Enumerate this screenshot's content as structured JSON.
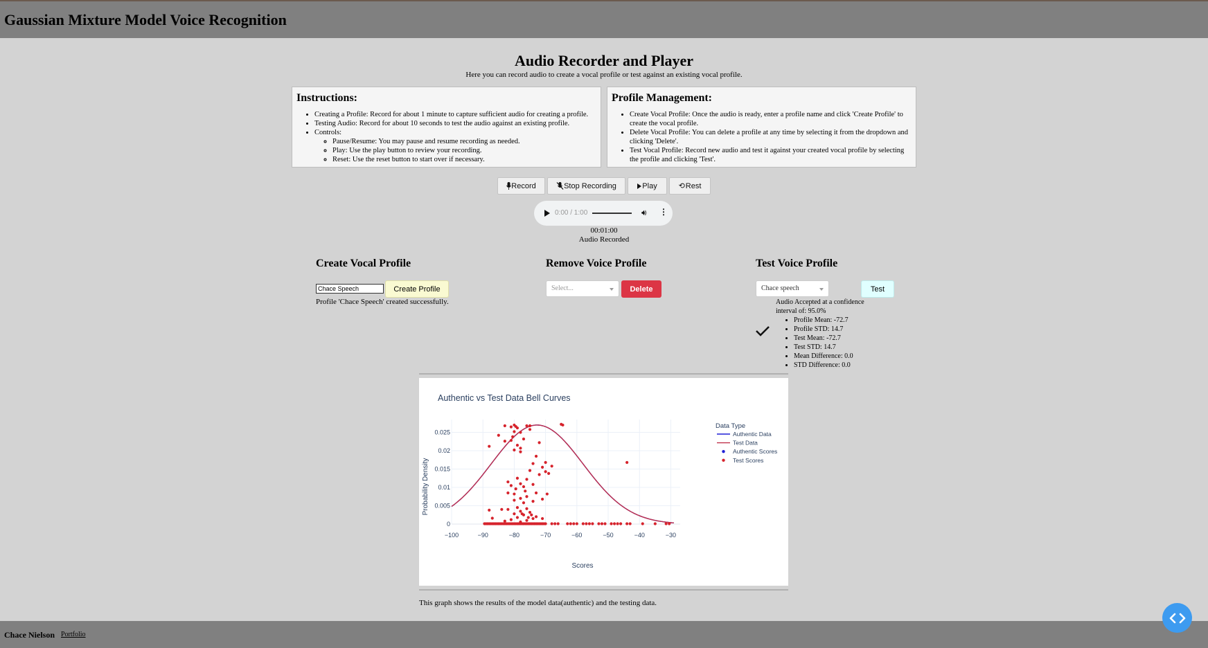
{
  "header": {
    "title": "Gaussian Mixture Model Voice Recognition"
  },
  "main": {
    "title": "Audio Recorder and Player",
    "subtitle": "Here you can record audio to create a vocal profile or test against an existing vocal profile."
  },
  "instructions": {
    "title": "Instructions:",
    "items": [
      "Creating a Profile: Record for about 1 minute to capture sufficient audio for creating a profile.",
      "Testing Audio: Record for about 10 seconds to test the audio against an existing profile.",
      "Controls:"
    ],
    "controls": [
      "Pause/Resume: You may pause and resume recording as needed.",
      "Play: Use the play button to review your recording.",
      "Reset: Use the reset button to start over if necessary."
    ]
  },
  "profile_management": {
    "title": "Profile Management:",
    "items": [
      "Create Vocal Profile: Once the audio is ready, enter a profile name and click 'Create Profile' to create the vocal profile.",
      "Delete Vocal Profile: You can delete a profile at any time by selecting it from the dropdown and clicking 'Delete'.",
      "Test Vocal Profile: Record new audio and test it against your created vocal profile by selecting the profile and clicking 'Test'."
    ]
  },
  "controls": {
    "record": "Record",
    "stop": "Stop Recording",
    "play": "Play",
    "reset": "Rest"
  },
  "player": {
    "time": "0:00 / 1:00"
  },
  "status": {
    "timer": "00:01:00",
    "message": "Audio Recorded"
  },
  "create": {
    "title": "Create Vocal Profile",
    "input_value": "Chace Speech",
    "button": "Create Profile",
    "message": "Profile 'Chace Speech' created successfully."
  },
  "remove": {
    "title": "Remove Voice Profile",
    "placeholder": "Select...",
    "button": "Delete"
  },
  "test": {
    "title": "Test Voice Profile",
    "selected": "Chace speech",
    "button": "Test",
    "result": "Audio Accepted at a confidence interval of: 95.0%",
    "stats": [
      "Profile Mean: -72.7",
      "Profile STD: 14.7",
      "Test Mean: -72.7",
      "Test STD: 14.7",
      "Mean Difference: 0.0",
      "STD Difference: 0.0"
    ]
  },
  "chart_data": {
    "type": "line",
    "title": "Authentic vs Test Data Bell Curves",
    "xlabel": "Scores",
    "ylabel": "Probability Density",
    "xlim": [
      -100,
      -27
    ],
    "ylim": [
      0,
      0.0285
    ],
    "xticks": [
      -100,
      -90,
      -80,
      -70,
      -60,
      -50,
      -40,
      -30
    ],
    "xtick_labels": [
      "−100",
      "−90",
      "−80",
      "−70",
      "−60",
      "−50",
      "−40",
      "−30"
    ],
    "yticks": [
      0,
      0.005,
      0.01,
      0.015,
      0.02,
      0.025
    ],
    "ytick_labels": [
      "0",
      "0.005",
      "0.01",
      "0.015",
      "0.02",
      "0.025"
    ],
    "grid": true,
    "legend_title": "Data Type",
    "legend_position": "right",
    "legend": [
      "Authentic Data",
      "Test Data",
      "Authentic Scores",
      "Test Scores"
    ],
    "curve": {
      "mean": -72.7,
      "std": 14.7,
      "x_start": -100,
      "x_end": -29,
      "amplitude": 0.027
    },
    "colors": {
      "authentic": "#1f1fd6",
      "test": "#d6232c",
      "test_line": "#c0304a"
    },
    "test_scores_upper": [
      [
        -81,
        0.0265
      ],
      [
        -80,
        0.027
      ],
      [
        -79.5,
        0.0266
      ],
      [
        -83,
        0.0268
      ],
      [
        -79,
        0.0262
      ],
      [
        -76,
        0.0268
      ],
      [
        -75,
        0.0268
      ],
      [
        -65,
        0.0272
      ],
      [
        -64.5,
        0.027
      ],
      [
        -80,
        0.0252
      ],
      [
        -78,
        0.025
      ],
      [
        -75,
        0.0258
      ],
      [
        -85,
        0.0242
      ],
      [
        -80.5,
        0.0238
      ],
      [
        -77,
        0.0232
      ],
      [
        -81,
        0.0228
      ],
      [
        -83,
        0.0226
      ],
      [
        -88,
        0.0212
      ],
      [
        -79,
        0.0215
      ],
      [
        -78,
        0.0207
      ],
      [
        -72,
        0.0222
      ],
      [
        -80,
        0.0202
      ],
      [
        -78,
        0.0197
      ],
      [
        -73,
        0.0185
      ],
      [
        -70,
        0.0168
      ],
      [
        -74,
        0.0165
      ],
      [
        -68,
        0.0158
      ],
      [
        -71,
        0.0155
      ],
      [
        -70,
        0.0143
      ],
      [
        -75,
        0.0146
      ],
      [
        -72,
        0.0135
      ],
      [
        -69,
        0.0138
      ],
      [
        -44,
        0.0168
      ],
      [
        -76,
        0.0122
      ],
      [
        -79,
        0.0125
      ],
      [
        -82,
        0.0115
      ],
      [
        -78,
        0.011
      ],
      [
        -81,
        0.0105
      ],
      [
        -74,
        0.0108
      ],
      [
        -77,
        0.0102
      ],
      [
        -79.5,
        0.0096
      ],
      [
        -76.5,
        0.009
      ],
      [
        -73,
        0.0085
      ],
      [
        -80,
        0.0082
      ],
      [
        -82,
        0.0085
      ],
      [
        -69.5,
        0.0082
      ],
      [
        -76,
        0.0075
      ],
      [
        -78,
        0.007
      ],
      [
        -71,
        0.0068
      ],
      [
        -80,
        0.0065
      ],
      [
        -74,
        0.0062
      ],
      [
        -77,
        0.0058
      ],
      [
        -88,
        0.0038
      ],
      [
        -84,
        0.004
      ],
      [
        -82,
        0.004
      ],
      [
        -79,
        0.0045
      ],
      [
        -76,
        0.0042
      ],
      [
        -78,
        0.0035
      ],
      [
        -75,
        0.0032
      ],
      [
        -80,
        0.0028
      ],
      [
        -77,
        0.0025
      ],
      [
        -73,
        0.002
      ],
      [
        -87,
        0.0016
      ],
      [
        -74,
        0.0015
      ],
      [
        -81,
        0.0012
      ],
      [
        -76,
        0.001
      ],
      [
        -71,
        0.0015
      ],
      [
        -83,
        0.0008
      ],
      [
        -78,
        0.0006
      ],
      [
        -75.5,
        0.0018
      ],
      [
        -79,
        0.0018
      ],
      [
        -77.5,
        0.0028
      ],
      [
        -74.5,
        0.0025
      ]
    ],
    "test_scores_zero": [
      -89.5,
      -89,
      -88.5,
      -88,
      -87.5,
      -87,
      -86.5,
      -86,
      -85.5,
      -85,
      -84.5,
      -84,
      -83.5,
      -83,
      -82.5,
      -82,
      -81.5,
      -81,
      -80.5,
      -80,
      -79.5,
      -79,
      -78.5,
      -78,
      -77.5,
      -77,
      -76.5,
      -76,
      -75.5,
      -75,
      -74.5,
      -74,
      -73.5,
      -73,
      -72.5,
      -72,
      -71.5,
      -71,
      -70.5,
      -70,
      -68,
      -67,
      -66,
      -63,
      -62,
      -61,
      -60,
      -58,
      -57,
      -56,
      -55,
      -53,
      -52,
      -51,
      -49,
      -48,
      -47,
      -46,
      -44,
      -43,
      -39,
      -35,
      -31.5,
      -30.5
    ]
  },
  "caption": "This graph shows the results of the model data(authentic) and the testing data.",
  "footer": {
    "name": "Chace Nielson",
    "link": "Portfolio"
  }
}
